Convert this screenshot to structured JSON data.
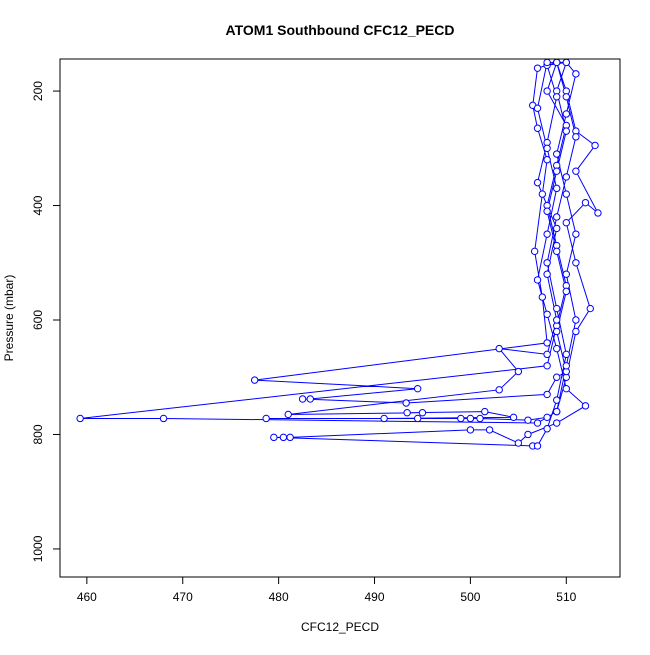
{
  "chart_data": {
    "type": "line",
    "title": "ATOM1 Southbound CFC12_PECD",
    "x_label": "CFC12_PECD",
    "y_label": "Pressure (mbar)",
    "color": "#0000ff",
    "markers": "open-circle",
    "y_inverted": true,
    "x": [
      509,
      508,
      510,
      509,
      508,
      509,
      510,
      509,
      508,
      459.3,
      468,
      507,
      509,
      510,
      511,
      512.5,
      511,
      510,
      512,
      513.3,
      511,
      513,
      511,
      510,
      509,
      507,
      506.5,
      507,
      508,
      507.5,
      506.7,
      507.5,
      508,
      477.5,
      494.5,
      483.3,
      482.5,
      493.3,
      508,
      509,
      510,
      509,
      510,
      509,
      508,
      509,
      510,
      509,
      510,
      508,
      509,
      508,
      507,
      509,
      508,
      509,
      508,
      503,
      505,
      503,
      481,
      495,
      493.4,
      501.5,
      504.5,
      491,
      478.7,
      494.5,
      499,
      500,
      501,
      506,
      508,
      509,
      510,
      511,
      510,
      511,
      510,
      509,
      510,
      511,
      510,
      508,
      507,
      508,
      509,
      508,
      507,
      508,
      509,
      510,
      512,
      509,
      506,
      505,
      502,
      500,
      481.2,
      480.5,
      479.5,
      506.5,
      507,
      508,
      509,
      510,
      509,
      508,
      509,
      510,
      511,
      510,
      509
    ],
    "values": [
      150,
      200,
      260,
      330,
      400,
      470,
      540,
      610,
      680,
      772,
      772,
      780,
      760,
      700,
      620,
      580,
      500,
      430,
      395,
      413,
      340,
      295,
      270,
      200,
      150,
      160,
      225,
      265,
      320,
      380,
      480,
      560,
      640,
      705,
      720,
      738,
      738,
      745,
      730,
      700,
      690,
      620,
      550,
      480,
      410,
      340,
      270,
      200,
      150,
      155,
      210,
      290,
      360,
      440,
      520,
      600,
      660,
      650,
      690,
      722,
      765,
      762,
      762,
      760,
      770,
      772,
      772,
      772,
      772,
      772,
      772,
      775,
      770,
      760,
      680,
      600,
      520,
      450,
      380,
      310,
      240,
      170,
      150,
      150,
      230,
      300,
      370,
      450,
      530,
      590,
      650,
      720,
      750,
      780,
      800,
      815,
      792,
      792,
      805,
      805,
      805,
      820,
      820,
      790,
      740,
      660,
      580,
      500,
      420,
      350,
      280,
      210,
      150
    ],
    "xlim": [
      457.2,
      515.6
    ],
    "ylim": [
      144,
      1049
    ],
    "xticks": [
      460,
      470,
      480,
      490,
      500,
      510
    ],
    "yticks": [
      200,
      400,
      600,
      800,
      1000
    ]
  }
}
